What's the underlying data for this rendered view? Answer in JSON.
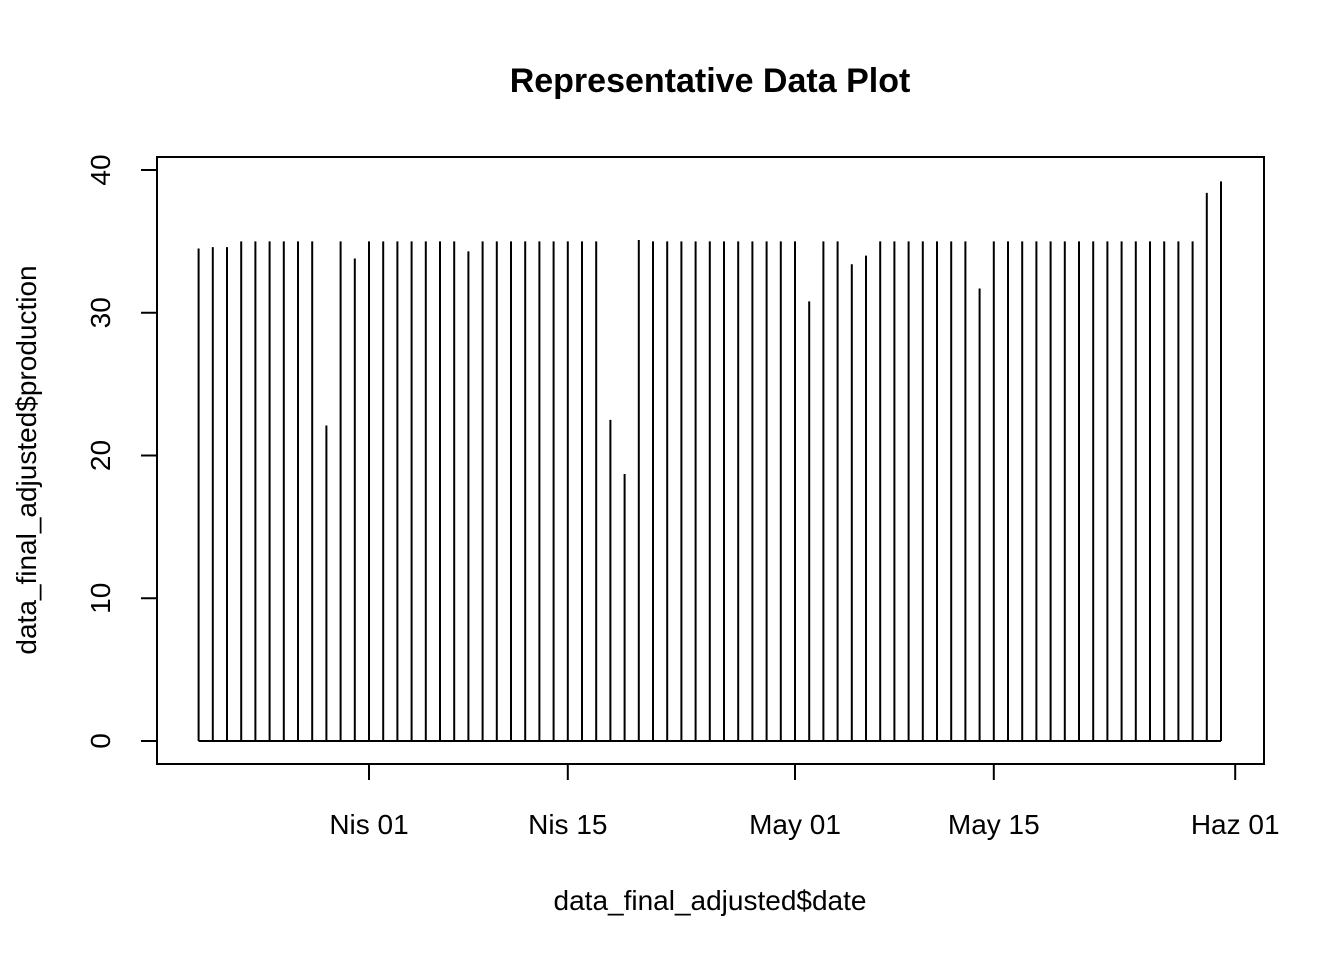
{
  "chart_data": {
    "type": "line",
    "subtype": "histogram-spikes",
    "title": "Representative Data Plot",
    "xlabel": "data_final_adjusted$date",
    "ylabel": "data_final_adjusted$production",
    "xlim": [
      "2023-03-17",
      "2023-06-01"
    ],
    "ylim": [
      0,
      40
    ],
    "x_ticks": [
      {
        "date": "2023-04-01",
        "label": "Nis 01"
      },
      {
        "date": "2023-04-15",
        "label": "Nis 15"
      },
      {
        "date": "2023-05-01",
        "label": "May 01"
      },
      {
        "date": "2023-05-15",
        "label": "May 15"
      },
      {
        "date": "2023-06-01",
        "label": "Haz 01"
      }
    ],
    "y_ticks": [
      0,
      10,
      20,
      30,
      40
    ],
    "grid": false,
    "legend": "none",
    "color": "#000000",
    "series": [
      {
        "x": [
          "2023-03-20",
          "2023-03-21",
          "2023-03-22",
          "2023-03-23",
          "2023-03-24",
          "2023-03-25",
          "2023-03-26",
          "2023-03-27",
          "2023-03-28",
          "2023-03-29",
          "2023-03-30",
          "2023-03-31",
          "2023-04-01",
          "2023-04-02",
          "2023-04-03",
          "2023-04-04",
          "2023-04-05",
          "2023-04-06",
          "2023-04-07",
          "2023-04-08",
          "2023-04-09",
          "2023-04-10",
          "2023-04-11",
          "2023-04-12",
          "2023-04-13",
          "2023-04-14",
          "2023-04-15",
          "2023-04-16",
          "2023-04-17",
          "2023-04-18",
          "2023-04-19",
          "2023-04-20",
          "2023-04-21",
          "2023-04-22",
          "2023-04-23",
          "2023-04-24",
          "2023-04-25",
          "2023-04-26",
          "2023-04-27",
          "2023-04-28",
          "2023-04-29",
          "2023-04-30",
          "2023-05-01",
          "2023-05-02",
          "2023-05-03",
          "2023-05-04",
          "2023-05-05",
          "2023-05-06",
          "2023-05-07",
          "2023-05-08",
          "2023-05-09",
          "2023-05-10",
          "2023-05-11",
          "2023-05-12",
          "2023-05-13",
          "2023-05-14",
          "2023-05-15",
          "2023-05-16",
          "2023-05-17",
          "2023-05-18",
          "2023-05-19",
          "2023-05-20",
          "2023-05-21",
          "2023-05-22",
          "2023-05-23",
          "2023-05-24",
          "2023-05-25",
          "2023-05-26",
          "2023-05-27",
          "2023-05-28",
          "2023-05-29",
          "2023-05-30",
          "2023-05-31"
        ],
        "y": [
          34.5,
          34.6,
          34.6,
          35.0,
          35.0,
          35.0,
          35.0,
          35.0,
          35.0,
          22.1,
          35.0,
          33.8,
          35.0,
          35.0,
          35.0,
          35.0,
          35.0,
          35.0,
          35.0,
          34.3,
          35.0,
          35.0,
          35.0,
          35.0,
          35.0,
          35.0,
          35.0,
          35.0,
          35.0,
          22.5,
          18.7,
          35.1,
          35.0,
          35.0,
          35.0,
          35.0,
          35.0,
          35.0,
          35.0,
          35.0,
          35.0,
          35.0,
          35.0,
          30.8,
          35.0,
          35.0,
          33.4,
          34.0,
          35.0,
          35.0,
          35.0,
          35.0,
          35.0,
          35.0,
          35.0,
          31.7,
          35.0,
          35.0,
          35.0,
          35.0,
          35.0,
          35.0,
          35.0,
          35.0,
          35.0,
          35.0,
          35.0,
          35.0,
          35.0,
          35.0,
          35.0,
          38.4,
          39.2
        ]
      }
    ]
  }
}
